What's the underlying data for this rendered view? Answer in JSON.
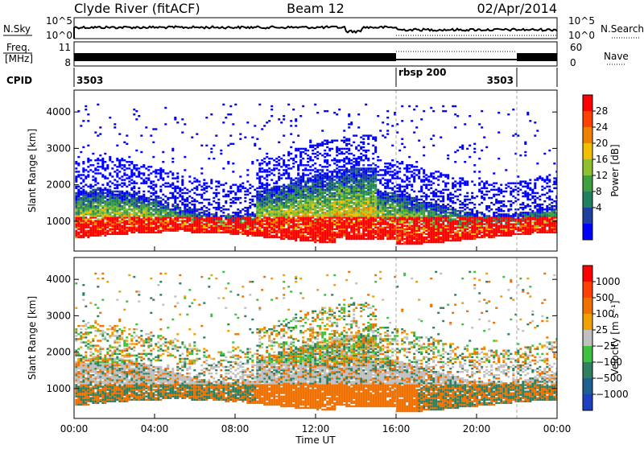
{
  "header": {
    "title": "Clyde River (fitACF)",
    "beam": "Beam 12",
    "date": "02/Apr/2014"
  },
  "noise_panel": {
    "left_label": "N.Sky",
    "left_ticks": [
      "10^5",
      "10^0"
    ],
    "right_ticks": [
      "10^5",
      "10^0"
    ],
    "right_label": "N.Search"
  },
  "freq_panel": {
    "left_label_1": "Freq.",
    "left_label_2": "[MHz]",
    "left_ticks": [
      "11",
      "8"
    ],
    "right_ticks": [
      "60",
      "0"
    ],
    "right_label": "Nave"
  },
  "cpid_panel": {
    "label": "CPID",
    "segments": [
      {
        "text": "3503",
        "start_hour": 0,
        "end_hour": 16
      },
      {
        "text": "rbsp 200",
        "start_hour": 16,
        "end_hour": 22
      },
      {
        "text": "3503",
        "start_hour": 22,
        "end_hour": 24
      }
    ]
  },
  "colors": {
    "power_scale": [
      "#0000ff",
      "#2040a0",
      "#208060",
      "#40a040",
      "#90c030",
      "#f0c000",
      "#f08000",
      "#ff4000",
      "#ff0000"
    ],
    "velocity_scale": [
      "#2040c0",
      "#206090",
      "#308060",
      "#40c040",
      "#c0c0c0",
      "#f0a000",
      "#f07000",
      "#ff4000",
      "#ff0000"
    ]
  },
  "chart_data": [
    {
      "type": "heatmap",
      "ylabel": "Slant Range [km]",
      "xlabel": "",
      "colorbar_label": "Power [dB]",
      "colorbar_ticks": [
        "28",
        "24",
        "20",
        "16",
        "12",
        "8",
        "4"
      ],
      "colorbar_range": [
        0,
        32
      ],
      "x_range_hours": [
        0,
        24
      ],
      "y_range_km": [
        180,
        4600
      ],
      "y_ticks": [
        1000,
        2000,
        3000,
        4000
      ],
      "mode_change_hours": [
        16,
        22
      ]
    },
    {
      "type": "heatmap",
      "ylabel": "Slant Range [km]",
      "xlabel": "Time UT",
      "x_ticks": [
        "00:00",
        "04:00",
        "08:00",
        "12:00",
        "16:00",
        "20:00",
        "00:00"
      ],
      "colorbar_label": "Velocity [m s⁻¹]",
      "colorbar_ticks": [
        "1000",
        "500",
        "100",
        "25",
        "−25",
        "−100",
        "−500",
        "−1000"
      ],
      "x_range_hours": [
        0,
        24
      ],
      "y_range_km": [
        180,
        4600
      ],
      "y_ticks": [
        1000,
        2000,
        3000,
        4000
      ],
      "mode_change_hours": [
        16,
        22
      ]
    }
  ]
}
